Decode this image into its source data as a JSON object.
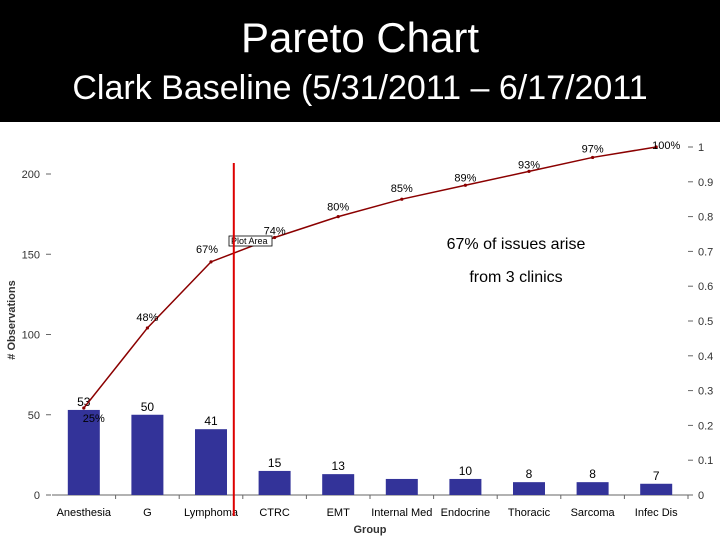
{
  "header": {
    "title": "Pareto Chart",
    "subtitle": "Clark Baseline (5/31/2011 – 6/17/2011"
  },
  "colors": {
    "bar": "#333399",
    "cumulative_line": "#8b0000",
    "divider": "#dd0000",
    "header_bg": "#000000"
  },
  "chart_data": {
    "type": "bar",
    "title": "",
    "xlabel": "Group",
    "ylabel": "# Observations",
    "ylim": [
      0,
      200
    ],
    "y_ticks": [
      "0",
      "50",
      "100",
      "150",
      "200"
    ],
    "y2_ticks": [
      "0",
      "0.1",
      "0.2",
      "0.3",
      "0.4",
      "0.5",
      "0.6",
      "0.7",
      "0.8",
      "0.9",
      "1"
    ],
    "categories": [
      "Anesthesia",
      "G",
      "Lymphoma",
      "CTRC",
      "EMT",
      "Internal Med",
      "Endocrine",
      "Thoracic",
      "Sarcoma",
      "Infec Dis"
    ],
    "series": [
      {
        "values": [
          53,
          50,
          41,
          15,
          13,
          10,
          10,
          8,
          8,
          7
        ],
        "labels": [
          "53",
          "50",
          "41",
          "15",
          "13",
          "",
          "10",
          "8",
          "8",
          "7"
        ]
      },
      {
        "values": [
          0.25,
          0.48,
          0.67,
          0.74,
          0.8,
          0.85,
          0.89,
          0.93,
          0.97,
          1.0
        ],
        "labels": [
          "25%",
          "48%",
          "67%",
          "74%",
          "80%",
          "85%",
          "89%",
          "93%",
          "97%",
          "100%"
        ]
      }
    ],
    "tag": "Plot Area",
    "annotation": [
      "67% of issues arise",
      "from 3 clinics"
    ],
    "divider_after_category": 3,
    "grid": false
  }
}
